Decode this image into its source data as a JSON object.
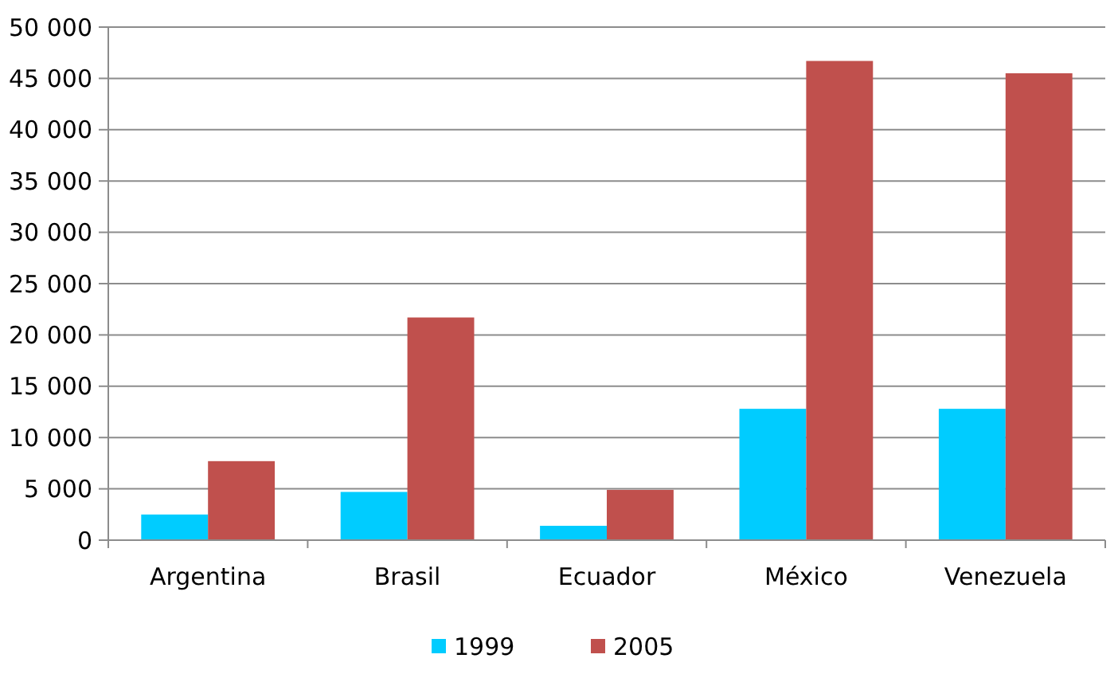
{
  "chart_data": {
    "type": "bar",
    "categories": [
      "Argentina",
      "Brasil",
      "Ecuador",
      "México",
      "Venezuela"
    ],
    "series": [
      {
        "name": "1999",
        "color": "#00ccff",
        "values": [
          2500,
          4700,
          1400,
          12800,
          12800
        ]
      },
      {
        "name": "2005",
        "color": "#c0504d",
        "values": [
          7700,
          21700,
          4900,
          46700,
          45500
        ]
      }
    ],
    "ylim": [
      0,
      50000
    ],
    "yticks": [
      {
        "value": 0,
        "label": "0"
      },
      {
        "value": 5000,
        "label": "5 000"
      },
      {
        "value": 10000,
        "label": "10 000"
      },
      {
        "value": 15000,
        "label": "15 000"
      },
      {
        "value": 20000,
        "label": "20 000"
      },
      {
        "value": 25000,
        "label": "25 000"
      },
      {
        "value": 30000,
        "label": "30 000"
      },
      {
        "value": 35000,
        "label": "35 000"
      },
      {
        "value": 40000,
        "label": "40 000"
      },
      {
        "value": 45000,
        "label": "45 000"
      },
      {
        "value": 50000,
        "label": "50 000"
      }
    ],
    "grid": "y",
    "legend": "bottom"
  }
}
